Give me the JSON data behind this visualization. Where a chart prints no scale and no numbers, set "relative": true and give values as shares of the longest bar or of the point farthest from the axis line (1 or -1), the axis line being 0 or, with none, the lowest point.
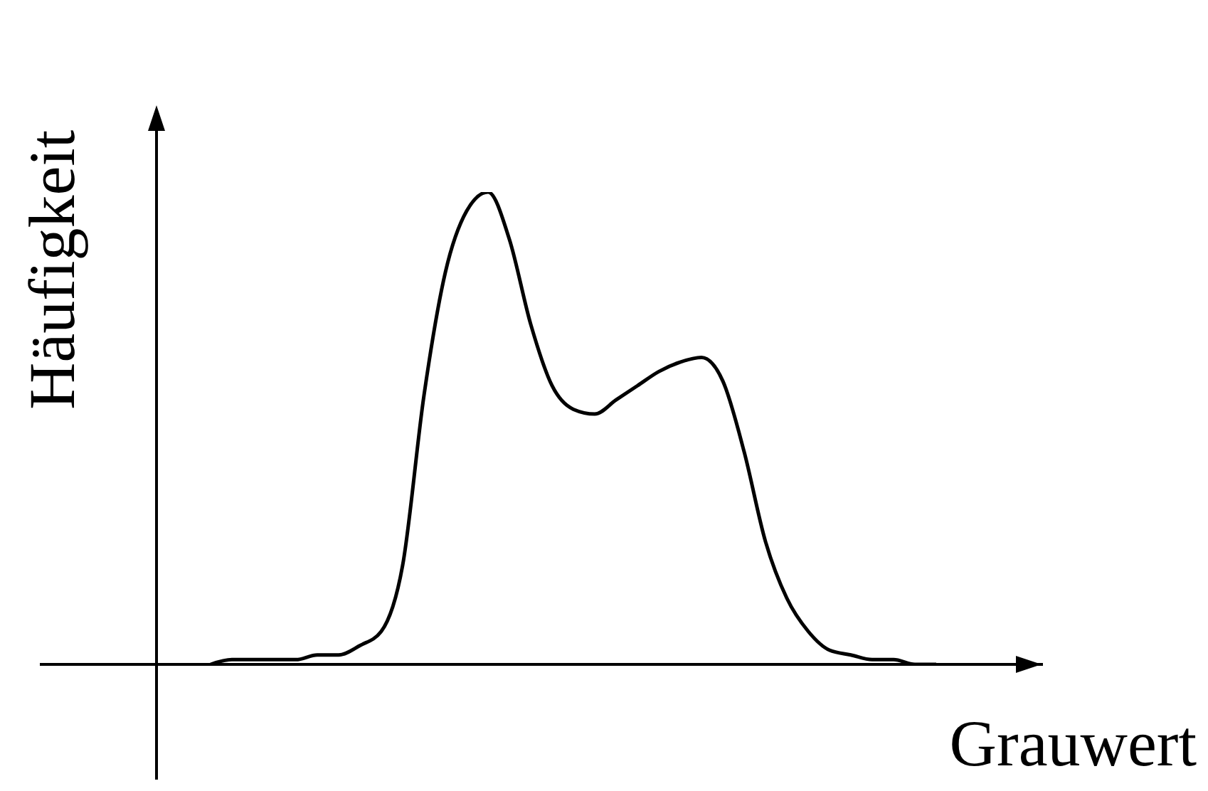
{
  "chart_data": {
    "type": "line",
    "relative": true,
    "xlabel": "Grauwert",
    "ylabel": "Häufigkeit",
    "color": "#000000",
    "marker": "none",
    "line_style": "solid",
    "grid": false,
    "legend": false,
    "categories": [
      null,
      null,
      null,
      null,
      null,
      null,
      null,
      null,
      null,
      null,
      null,
      null,
      null,
      null,
      null,
      null,
      null,
      null,
      null,
      null,
      null,
      null,
      null,
      null,
      null,
      null,
      null,
      null,
      null,
      null,
      null,
      null,
      null,
      null,
      null,
      null,
      null,
      null,
      null,
      null,
      null,
      null,
      null,
      null,
      null,
      null,
      null,
      null
    ],
    "values": [
      null,
      null,
      null,
      null,
      null,
      null,
      null,
      null,
      0,
      0.01,
      0.01,
      0.01,
      0.01,
      0.02,
      0.02,
      0.04,
      0.07,
      0.21,
      0.57,
      0.83,
      0.96,
      1,
      0.9,
      0.72,
      0.59,
      0.54,
      0.53,
      0.56,
      0.59,
      0.62,
      0.64,
      0.65,
      0.6,
      0.45,
      0.26,
      0.14,
      0.07,
      0.03,
      0.02,
      0.01,
      0.01,
      0,
      0,
      null,
      null,
      null,
      null,
      null
    ]
  }
}
